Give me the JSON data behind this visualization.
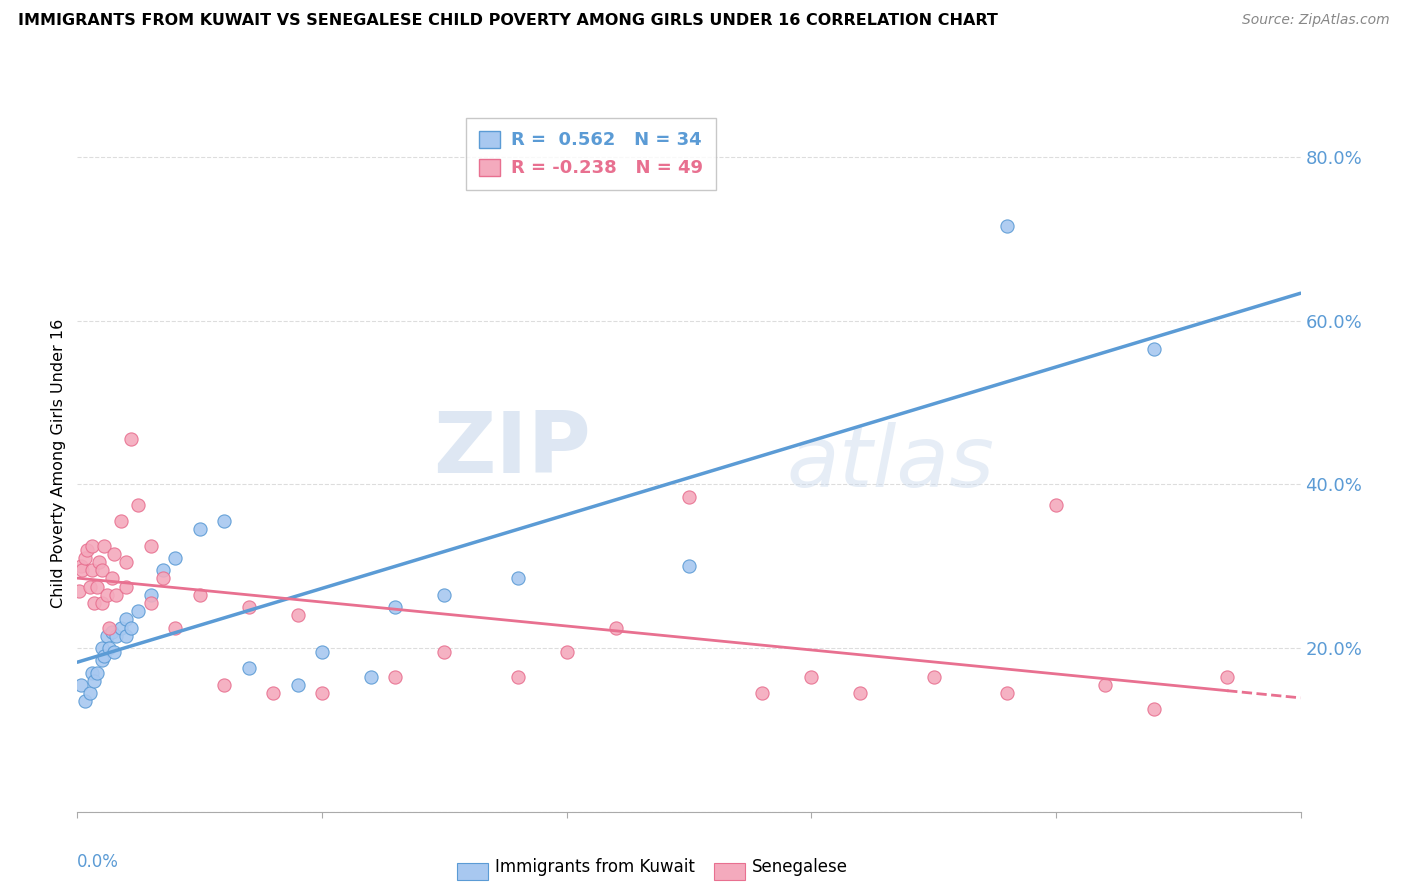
{
  "title": "IMMIGRANTS FROM KUWAIT VS SENEGALESE CHILD POVERTY AMONG GIRLS UNDER 16 CORRELATION CHART",
  "source": "Source: ZipAtlas.com",
  "ylabel": "Child Poverty Among Girls Under 16",
  "blue_R": 0.562,
  "blue_N": 34,
  "pink_R": -0.238,
  "pink_N": 49,
  "blue_color": "#A8C8F0",
  "pink_color": "#F4AABD",
  "blue_line_color": "#5B9BD5",
  "pink_line_color": "#E87090",
  "watermark_zip": "ZIP",
  "watermark_atlas": "atlas",
  "background_color": "#FFFFFF",
  "grid_color": "#DDDDDD",
  "blue_points_x": [
    0.00015,
    0.0003,
    0.0005,
    0.0006,
    0.0007,
    0.0008,
    0.001,
    0.001,
    0.0011,
    0.0012,
    0.0013,
    0.0014,
    0.0015,
    0.0016,
    0.0018,
    0.002,
    0.002,
    0.0022,
    0.0025,
    0.003,
    0.0035,
    0.004,
    0.005,
    0.006,
    0.007,
    0.009,
    0.01,
    0.012,
    0.013,
    0.015,
    0.018,
    0.025,
    0.038,
    0.044
  ],
  "blue_points_y": [
    0.155,
    0.135,
    0.145,
    0.17,
    0.16,
    0.17,
    0.2,
    0.185,
    0.19,
    0.215,
    0.2,
    0.22,
    0.195,
    0.215,
    0.225,
    0.235,
    0.215,
    0.225,
    0.245,
    0.265,
    0.295,
    0.31,
    0.345,
    0.355,
    0.175,
    0.155,
    0.195,
    0.165,
    0.25,
    0.265,
    0.285,
    0.3,
    0.715,
    0.565
  ],
  "pink_points_x": [
    8e-05,
    0.00015,
    0.0002,
    0.0003,
    0.0004,
    0.0005,
    0.0006,
    0.0006,
    0.0007,
    0.0008,
    0.0009,
    0.001,
    0.001,
    0.0011,
    0.0012,
    0.0013,
    0.0014,
    0.0015,
    0.0016,
    0.0018,
    0.002,
    0.002,
    0.0022,
    0.0025,
    0.003,
    0.003,
    0.0035,
    0.004,
    0.005,
    0.006,
    0.007,
    0.008,
    0.009,
    0.01,
    0.013,
    0.015,
    0.018,
    0.02,
    0.022,
    0.025,
    0.028,
    0.03,
    0.032,
    0.035,
    0.038,
    0.04,
    0.042,
    0.044,
    0.047
  ],
  "pink_points_y": [
    0.27,
    0.3,
    0.295,
    0.31,
    0.32,
    0.275,
    0.295,
    0.325,
    0.255,
    0.275,
    0.305,
    0.255,
    0.295,
    0.325,
    0.265,
    0.225,
    0.285,
    0.315,
    0.265,
    0.355,
    0.305,
    0.275,
    0.455,
    0.375,
    0.325,
    0.255,
    0.285,
    0.225,
    0.265,
    0.155,
    0.25,
    0.145,
    0.24,
    0.145,
    0.165,
    0.195,
    0.165,
    0.195,
    0.225,
    0.385,
    0.145,
    0.165,
    0.145,
    0.165,
    0.145,
    0.375,
    0.155,
    0.125,
    0.165
  ],
  "xlim": [
    0,
    0.05
  ],
  "ylim": [
    0,
    0.85
  ],
  "yticks": [
    0.0,
    0.2,
    0.4,
    0.6,
    0.8
  ],
  "ytick_labels": [
    "",
    "20.0%",
    "40.0%",
    "60.0%",
    "80.0%"
  ]
}
